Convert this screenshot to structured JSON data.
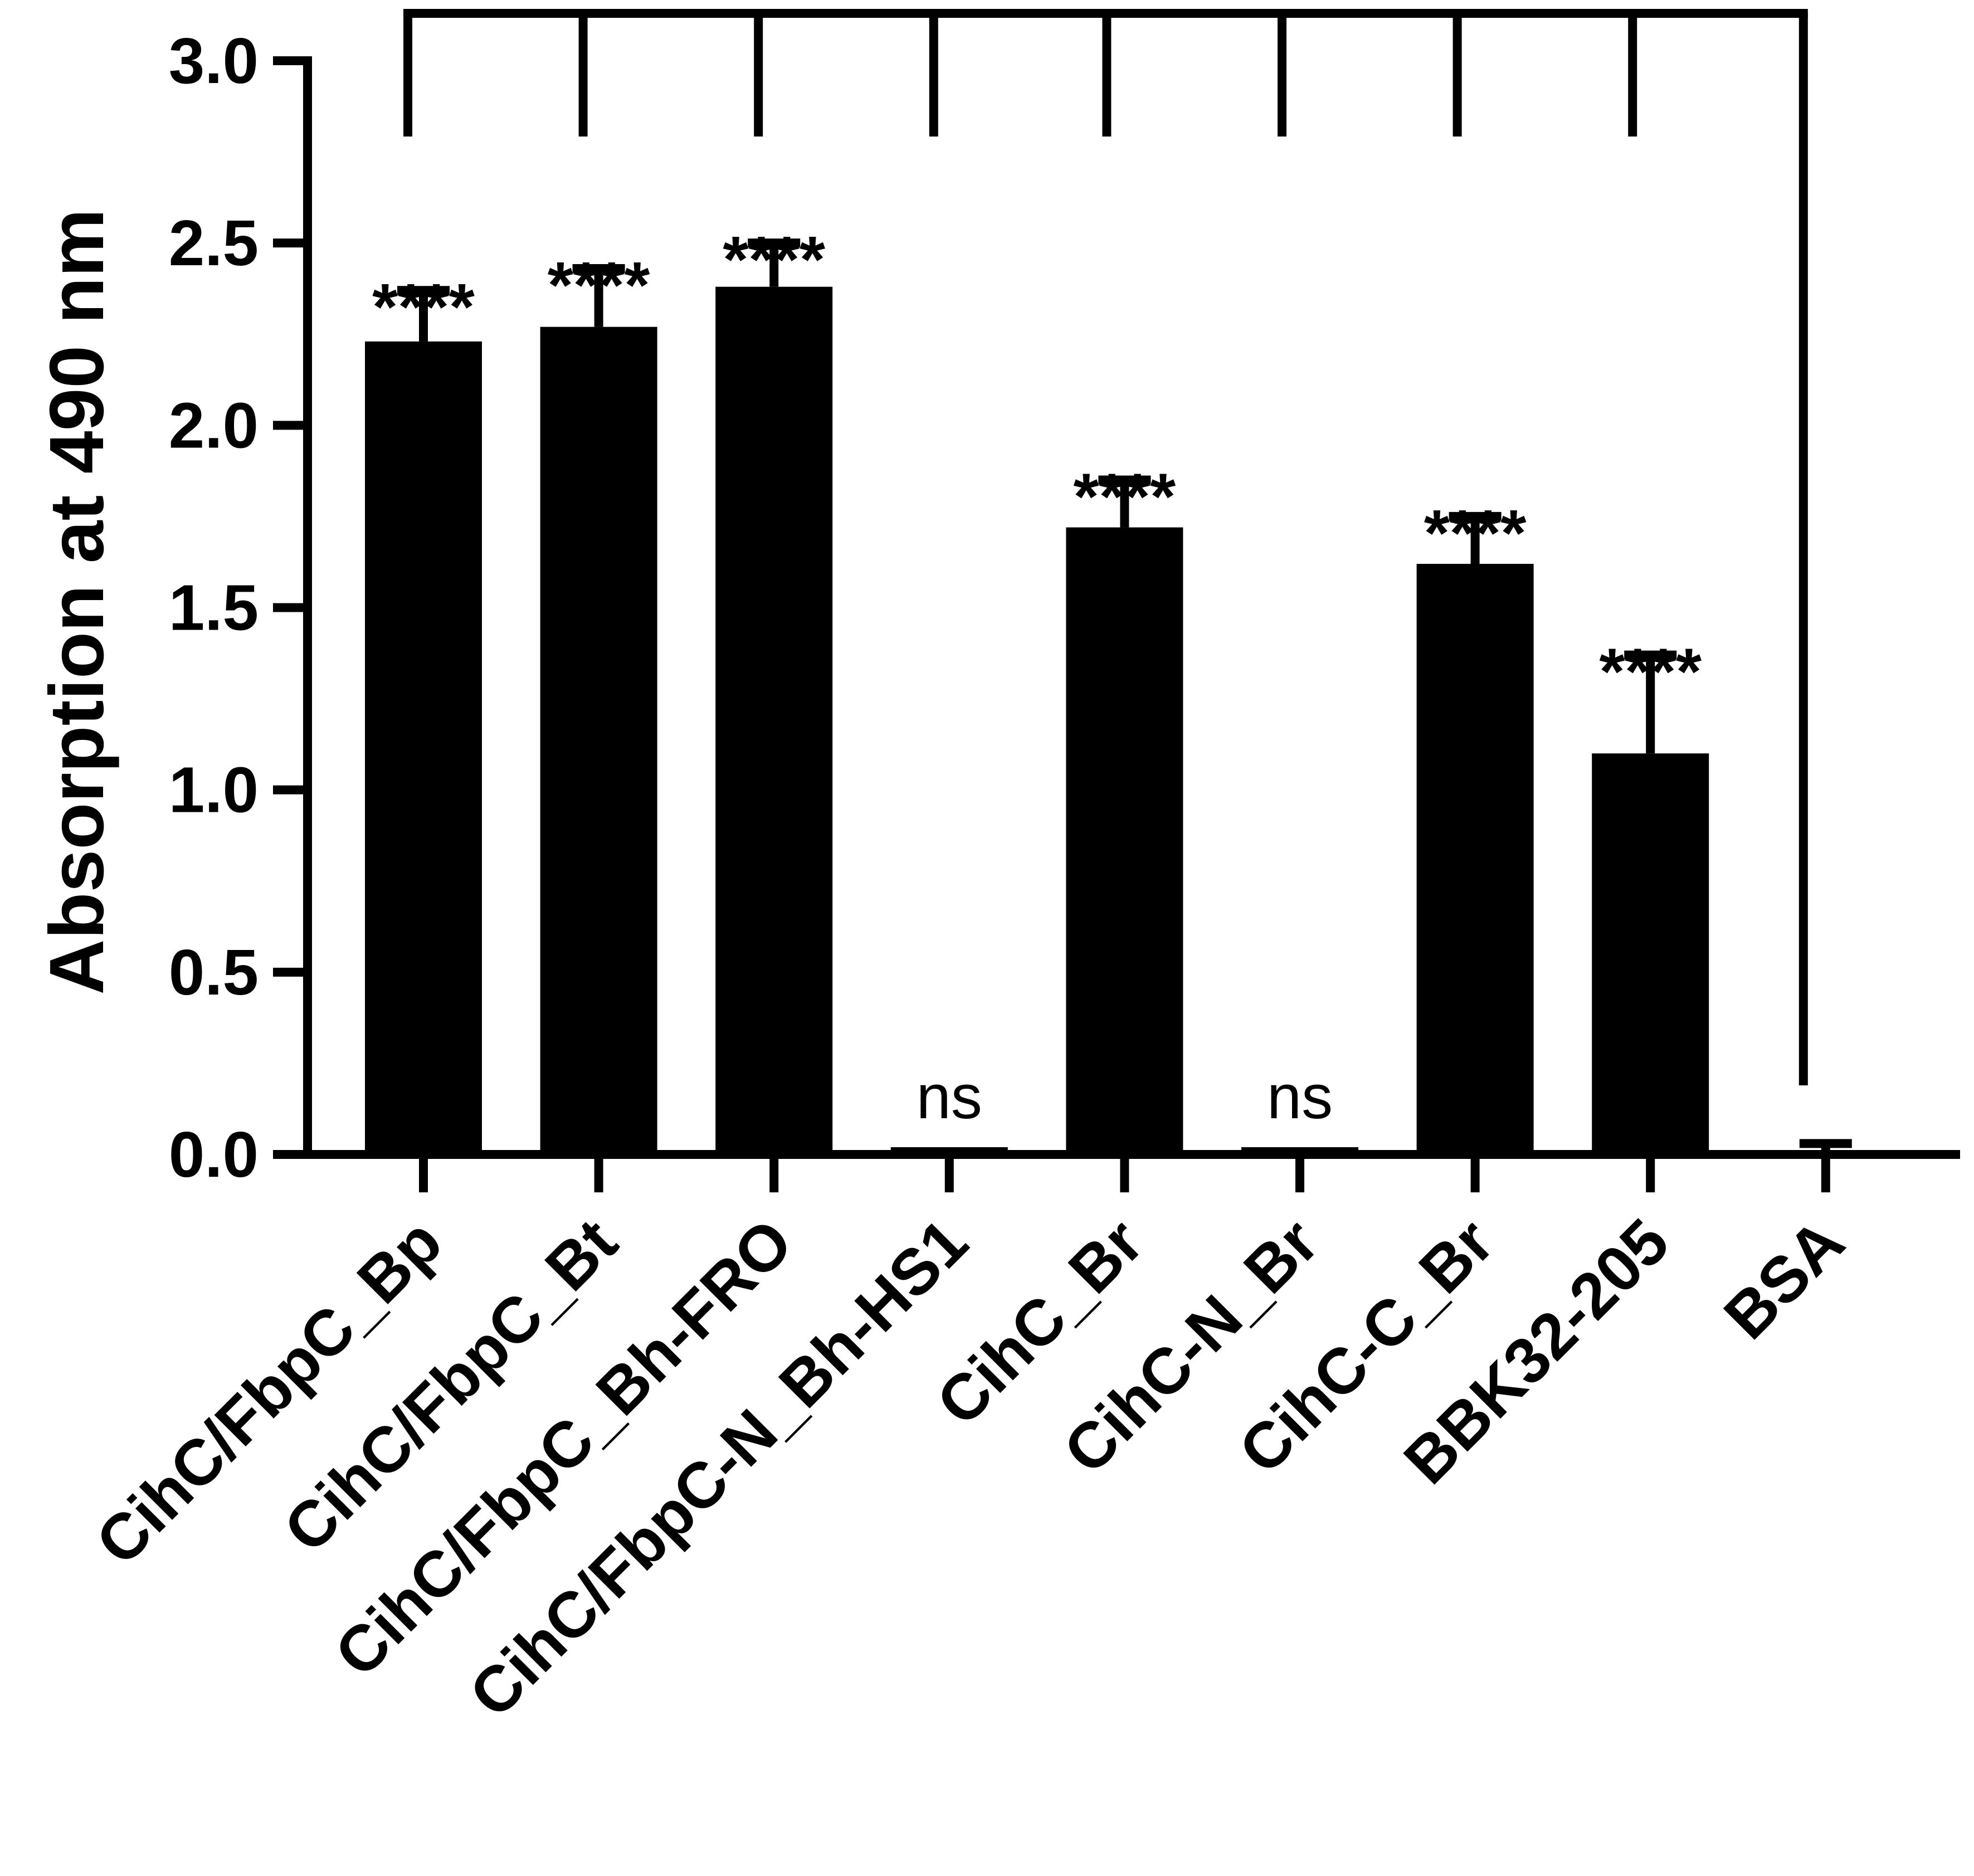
{
  "chart_data": {
    "type": "bar",
    "title": "",
    "xlabel": "",
    "ylabel": "Absorption at 490 nm",
    "ylim": [
      0,
      3.0
    ],
    "yticks": [
      0.0,
      0.5,
      1.0,
      1.5,
      2.0,
      2.5,
      3.0
    ],
    "ytick_labels": [
      "0.0",
      "0.5",
      "1.0",
      "1.5",
      "2.0",
      "2.5",
      "3.0"
    ],
    "categories": [
      "CihC/FbpC_Bp",
      "CihC/FbpC_Bt",
      "CihC/FbpC_Bh-FRO",
      "CihC/FbpC-N_Bh-HS1",
      "CihC_Br",
      "CihC-N_Br",
      "CihC-C_Br",
      "BBK32-205",
      "BSA"
    ],
    "values": [
      2.23,
      2.27,
      2.38,
      0.02,
      1.72,
      0.02,
      1.62,
      1.1,
      0.01
    ],
    "errors": [
      0.14,
      0.16,
      0.12,
      0.0,
      0.13,
      0.0,
      0.13,
      0.27,
      0.02
    ],
    "significance": [
      "****",
      "****",
      "****",
      "ns",
      "****",
      "ns",
      "****",
      "****",
      ""
    ],
    "comparison_reference": "BSA",
    "legend": "none",
    "grid": false,
    "bar_color": "#000000"
  }
}
